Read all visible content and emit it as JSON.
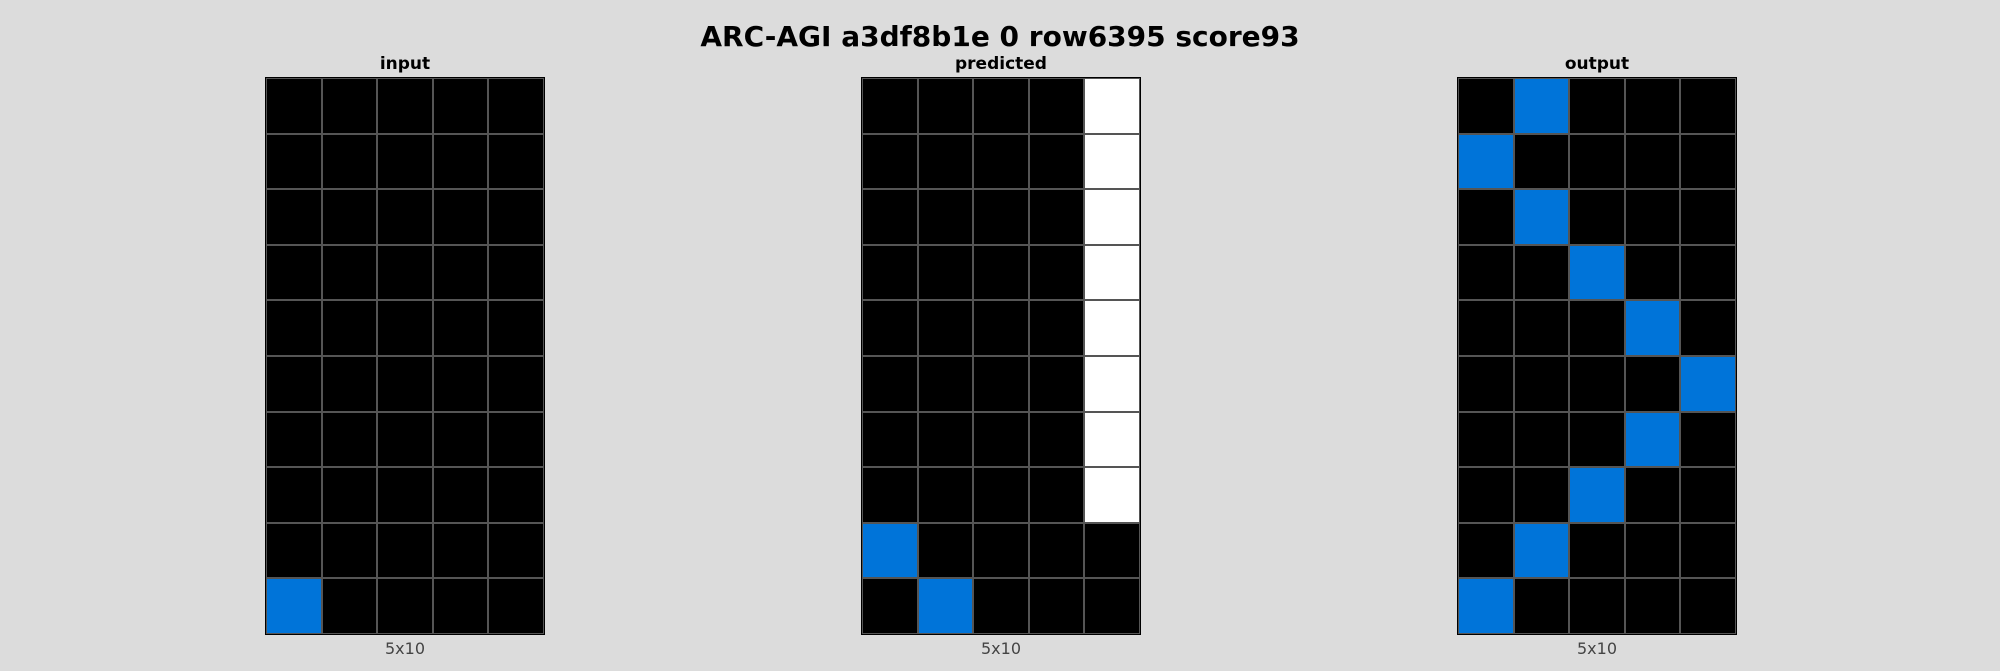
{
  "title": "ARC-AGI a3df8b1e 0 row6395 score93",
  "palette": {
    "0": "#000000",
    "1": "#0074d9",
    "w": "#ffffff"
  },
  "panels": [
    {
      "label": "input",
      "dims": "5x10",
      "grid": [
        [
          0,
          0,
          0,
          0,
          0
        ],
        [
          0,
          0,
          0,
          0,
          0
        ],
        [
          0,
          0,
          0,
          0,
          0
        ],
        [
          0,
          0,
          0,
          0,
          0
        ],
        [
          0,
          0,
          0,
          0,
          0
        ],
        [
          0,
          0,
          0,
          0,
          0
        ],
        [
          0,
          0,
          0,
          0,
          0
        ],
        [
          0,
          0,
          0,
          0,
          0
        ],
        [
          0,
          0,
          0,
          0,
          0
        ],
        [
          1,
          0,
          0,
          0,
          0
        ]
      ]
    },
    {
      "label": "predicted",
      "dims": "5x10",
      "grid": [
        [
          0,
          0,
          0,
          0,
          "w"
        ],
        [
          0,
          0,
          0,
          0,
          "w"
        ],
        [
          0,
          0,
          0,
          0,
          "w"
        ],
        [
          0,
          0,
          0,
          0,
          "w"
        ],
        [
          0,
          0,
          0,
          0,
          "w"
        ],
        [
          0,
          0,
          0,
          0,
          "w"
        ],
        [
          0,
          0,
          0,
          0,
          "w"
        ],
        [
          0,
          0,
          0,
          0,
          "w"
        ],
        [
          1,
          0,
          0,
          0,
          0
        ],
        [
          0,
          1,
          0,
          0,
          0
        ]
      ]
    },
    {
      "label": "output",
      "dims": "5x10",
      "grid": [
        [
          0,
          1,
          0,
          0,
          0
        ],
        [
          1,
          0,
          0,
          0,
          0
        ],
        [
          0,
          1,
          0,
          0,
          0
        ],
        [
          0,
          0,
          1,
          0,
          0
        ],
        [
          0,
          0,
          0,
          1,
          0
        ],
        [
          0,
          0,
          0,
          0,
          1
        ],
        [
          0,
          0,
          0,
          1,
          0
        ],
        [
          0,
          0,
          1,
          0,
          0
        ],
        [
          0,
          1,
          0,
          0,
          0
        ],
        [
          1,
          0,
          0,
          0,
          0
        ]
      ]
    }
  ]
}
